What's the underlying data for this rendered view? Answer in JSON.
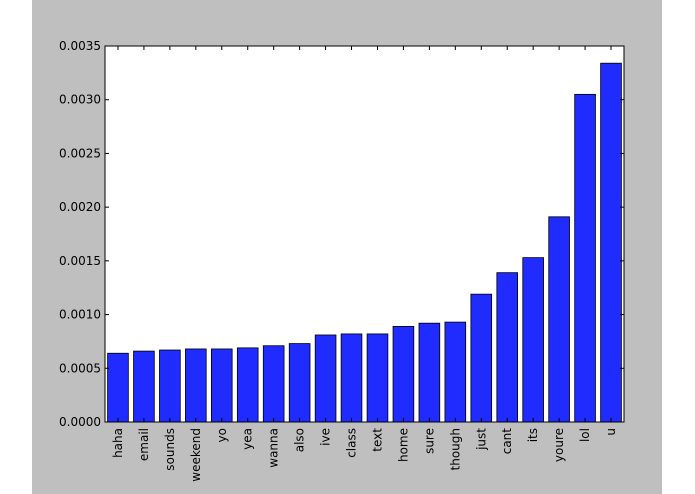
{
  "chart_data": {
    "type": "bar",
    "categories": [
      "haha",
      "email",
      "sounds",
      "weekend",
      "yo",
      "yea",
      "wanna",
      "also",
      "ive",
      "class",
      "text",
      "home",
      "sure",
      "though",
      "just",
      "cant",
      "its",
      "youre",
      "lol",
      "u"
    ],
    "values": [
      0.00064,
      0.00066,
      0.00067,
      0.00068,
      0.00068,
      0.00069,
      0.00071,
      0.00073,
      0.00081,
      0.00082,
      0.00082,
      0.00089,
      0.00092,
      0.00093,
      0.00119,
      0.00139,
      0.00153,
      0.00191,
      0.00305,
      0.00334
    ],
    "yticks": [
      "0.0000",
      "0.0005",
      "0.0010",
      "0.0015",
      "0.0020",
      "0.0025",
      "0.0030",
      "0.0035"
    ],
    "ylim": [
      0,
      0.0035
    ],
    "bar_color": "#1f2bff",
    "figure_background": "#bfbfbf",
    "plot_background": "#ffffff",
    "grid": false,
    "title": "",
    "xlabel": "",
    "ylabel": ""
  }
}
